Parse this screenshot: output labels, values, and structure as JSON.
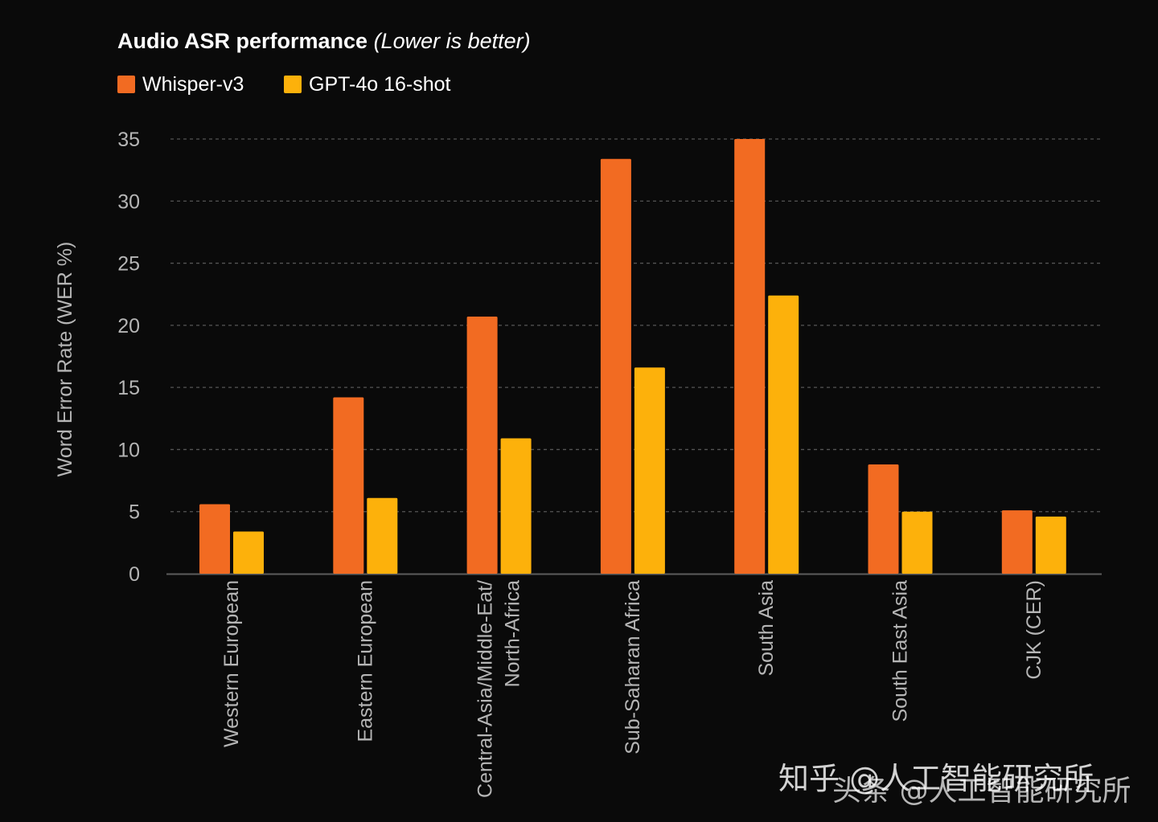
{
  "chart_data": {
    "type": "bar",
    "title": "Audio ASR performance",
    "subtitle": "(Lower is better)",
    "ylabel": "Word Error Rate (WER %)",
    "xlabel": "",
    "ylim": [
      0,
      35
    ],
    "yticks": [
      "0",
      "5",
      "10",
      "15",
      "20",
      "25",
      "30",
      "35"
    ],
    "grid": true,
    "legend_position": "top-left",
    "categories": [
      [
        "Western European"
      ],
      [
        "Eastern European"
      ],
      [
        "Central-Asia/Middle-Eat/",
        "North-Africa"
      ],
      [
        "Sub-Saharan Africa"
      ],
      [
        "South Asia"
      ],
      [
        "South East Asia"
      ],
      [
        "CJK (CER)"
      ]
    ],
    "series": [
      {
        "name": "Whisper-v3",
        "color": "#f26b22",
        "values": [
          5.6,
          14.2,
          20.7,
          33.4,
          35.0,
          8.8,
          5.1
        ]
      },
      {
        "name": "GPT-4o 16-shot",
        "color": "#fdb10b",
        "values": [
          3.4,
          6.1,
          10.9,
          16.6,
          22.4,
          5.0,
          4.6
        ]
      }
    ]
  },
  "watermark": {
    "line1": "知乎 @人工智能研究所",
    "line2": "头条 @人工智能研究所"
  },
  "colors": {
    "background": "#0a0a0a",
    "grid": "#555555",
    "axis_text": "#b5b5b5"
  }
}
